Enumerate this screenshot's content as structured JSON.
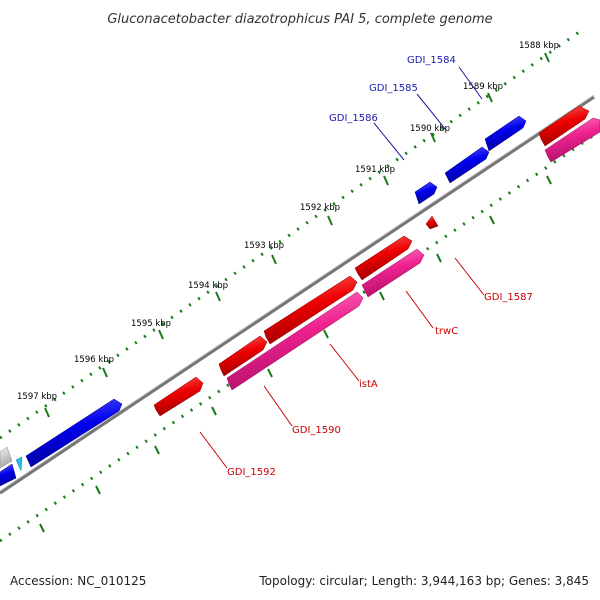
{
  "title": "Gluconacetobacter diazotrophicus PAI 5, complete genome",
  "ticks": [
    "1588 kbp",
    "1589 kbp",
    "1590 kbp",
    "1591 kbp",
    "1592 kbp",
    "1593 kbp",
    "1594 kbp",
    "1595 kbp",
    "1596 kbp",
    "1597 kbp"
  ],
  "gene_labels": {
    "gdi1584": "GDI_1584",
    "gdi1585": "GDI_1585",
    "gdi1586": "GDI_1586",
    "gdi1587": "GDI_1587",
    "trwc": "trwC",
    "ista": "istA",
    "gdi1590": "GDI_1590",
    "gdi1592": "GDI_1592"
  },
  "footer": {
    "accession": "Accession: NC_010125",
    "summary": "Topology: circular; Length: 3,944,163 bp; Genes: 3,845"
  },
  "colors": {
    "forward_gene": "#0000ee",
    "reverse_gene": "#ee0000",
    "reverse_cds": "#ee2290",
    "backbone": "#808080",
    "tick": "#1a7a1a",
    "forward_label": "#1a1aaa",
    "reverse_label": "#cc0000"
  }
}
